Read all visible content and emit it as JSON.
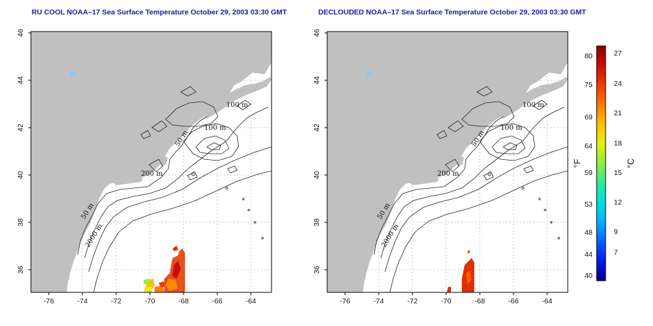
{
  "panels": [
    {
      "title": "RU COOL NOAA–17 Sea Surface Temperature October 29, 2003 03:30 GMT",
      "lon_ticks": [
        "-76",
        "-74",
        "-72",
        "-70",
        "-68",
        "-66",
        "-64"
      ],
      "lat_ticks": [
        "46",
        "44",
        "42",
        "40",
        "38",
        "36"
      ],
      "isobath_labels": [
        "100 m",
        "100 m",
        "50 m",
        "200 m",
        "50 m",
        "2000 m"
      ],
      "sst_patch": "cloudy"
    },
    {
      "title": "DECLOUDED NOAA–17 Sea Surface Temperature October 29, 2003 03:30 GMT",
      "lon_ticks": [
        "-76",
        "-74",
        "-72",
        "-70",
        "-68",
        "-66",
        "-64"
      ],
      "lat_ticks": [
        "46",
        "44",
        "42",
        "40",
        "38",
        "36"
      ],
      "isobath_labels": [
        "100 m",
        "100 m",
        "50 m",
        "200 m",
        "50 m",
        "2000 m"
      ],
      "sst_patch": "declouded"
    }
  ],
  "colorbar": {
    "fahrenheit_ticks": [
      "80",
      "75",
      "69",
      "64",
      "59",
      "53",
      "48",
      "44",
      "40"
    ],
    "celsius_ticks": [
      "27",
      "24",
      "21",
      "18",
      "15",
      "12",
      "9",
      "7"
    ],
    "fahrenheit_unit": "°F",
    "celsius_unit": "°C",
    "colors": [
      "#00008c",
      "#0018e8",
      "#0060ff",
      "#00b0ff",
      "#00e0e0",
      "#30e8a0",
      "#90ec40",
      "#e8ee10",
      "#ffc000",
      "#ff7a00",
      "#f03a00",
      "#c81000",
      "#8c0000"
    ]
  },
  "colors": {
    "land": "#c0c0c0",
    "ocean": "#ffffff",
    "title": "#1a1aa0",
    "grid": "#b8b8b8"
  }
}
